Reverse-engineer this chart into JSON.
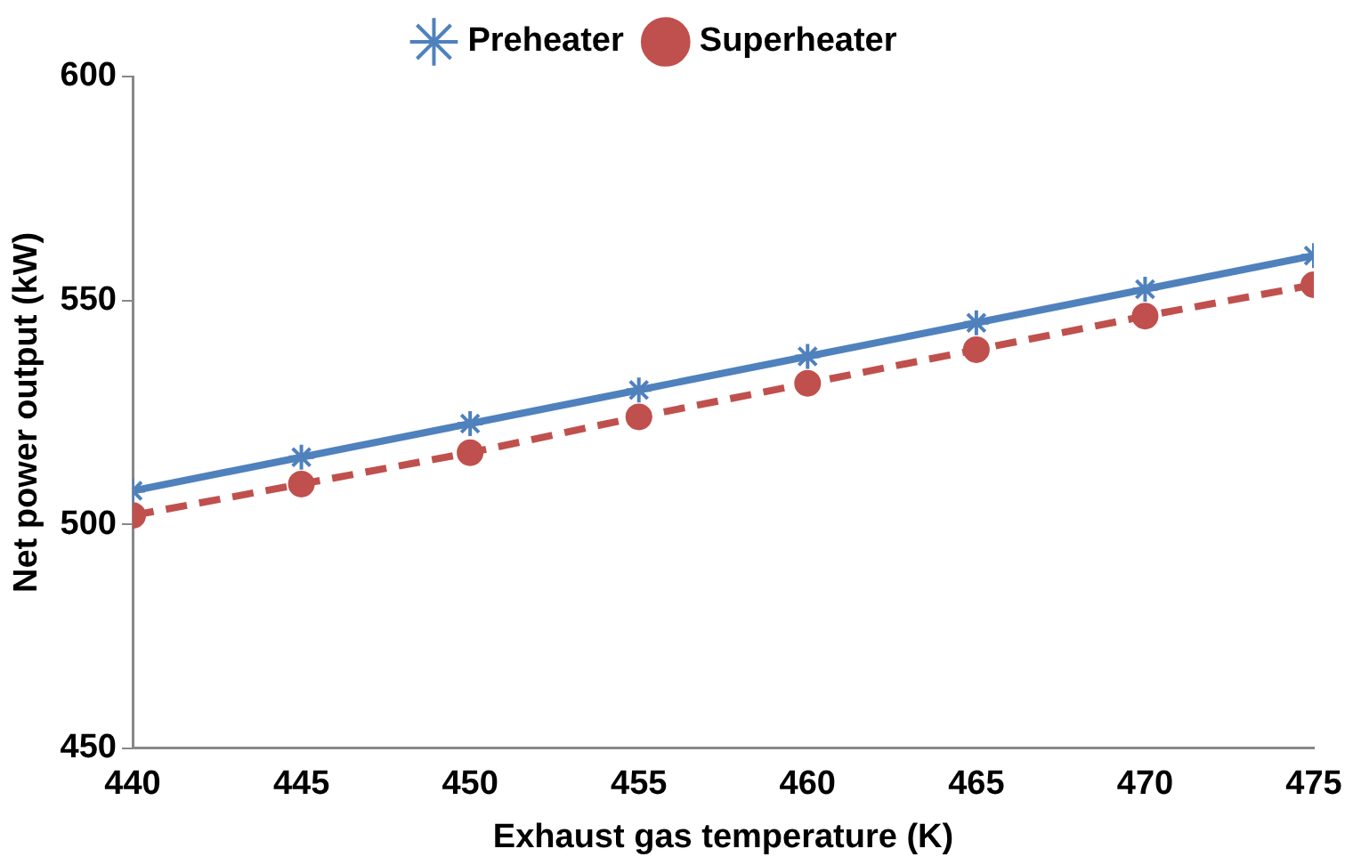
{
  "chart_data": {
    "type": "line",
    "xlabel": "Exhaust gas temperature (K)",
    "ylabel": "Net power output (kW)",
    "x": [
      440,
      445,
      450,
      455,
      460,
      465,
      470,
      475
    ],
    "series": [
      {
        "name": "Preheater",
        "color": "#4f81bd",
        "marker": "cross",
        "line_style": "solid",
        "values": [
          507.5,
          515,
          522.5,
          530,
          537.5,
          545,
          552.5,
          560
        ]
      },
      {
        "name": "Superheater",
        "color": "#c0504d",
        "marker": "circle",
        "line_style": "dashed",
        "values": [
          502,
          509,
          516,
          524,
          531.5,
          539,
          546.5,
          553.5
        ]
      }
    ],
    "xlim": [
      440,
      475
    ],
    "xticks": [
      440,
      445,
      450,
      455,
      460,
      465,
      470,
      475
    ],
    "ylim": [
      450,
      600
    ],
    "yticks": [
      450,
      500,
      550,
      600
    ],
    "grid": false,
    "legend": "top"
  }
}
